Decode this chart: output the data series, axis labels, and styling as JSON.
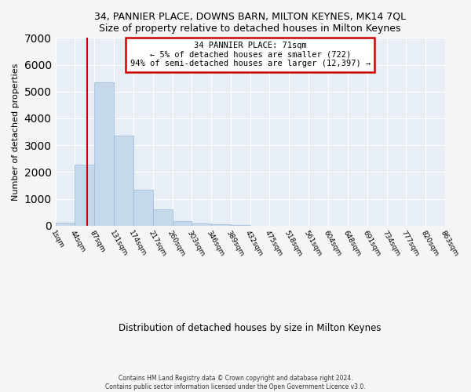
{
  "title": "34, PANNIER PLACE, DOWNS BARN, MILTON KEYNES, MK14 7QL",
  "subtitle": "Size of property relative to detached houses in Milton Keynes",
  "xlabel": "Distribution of detached houses by size in Milton Keynes",
  "ylabel": "Number of detached properties",
  "bar_color": "#c5d8ec",
  "bar_edge_color": "#9ab8d4",
  "property_line_x": 71,
  "annotation_text": "34 PANNIER PLACE: 71sqm\n← 5% of detached houses are smaller (722)\n94% of semi-detached houses are larger (12,397) →",
  "annotation_box_color": "#ffffff",
  "annotation_box_edge": "#cc0000",
  "footnote1": "Contains HM Land Registry data © Crown copyright and database right 2024.",
  "footnote2": "Contains public sector information licensed under the Open Government Licence v3.0.",
  "bin_edges": [
    1,
    44,
    87,
    131,
    174,
    217,
    260,
    303,
    346,
    389,
    432,
    475,
    518,
    561,
    604,
    648,
    691,
    734,
    777,
    820,
    863
  ],
  "bin_counts": [
    100,
    2280,
    5350,
    3350,
    1350,
    620,
    175,
    75,
    50,
    20,
    5,
    3,
    2,
    1,
    1,
    0,
    0,
    0,
    0,
    0
  ],
  "red_line_color": "#cc0000",
  "ylim": [
    0,
    7000
  ],
  "bg_color": "#e8eef5",
  "fig_bg": "#f5f5f5",
  "grid_color": "#ffffff"
}
